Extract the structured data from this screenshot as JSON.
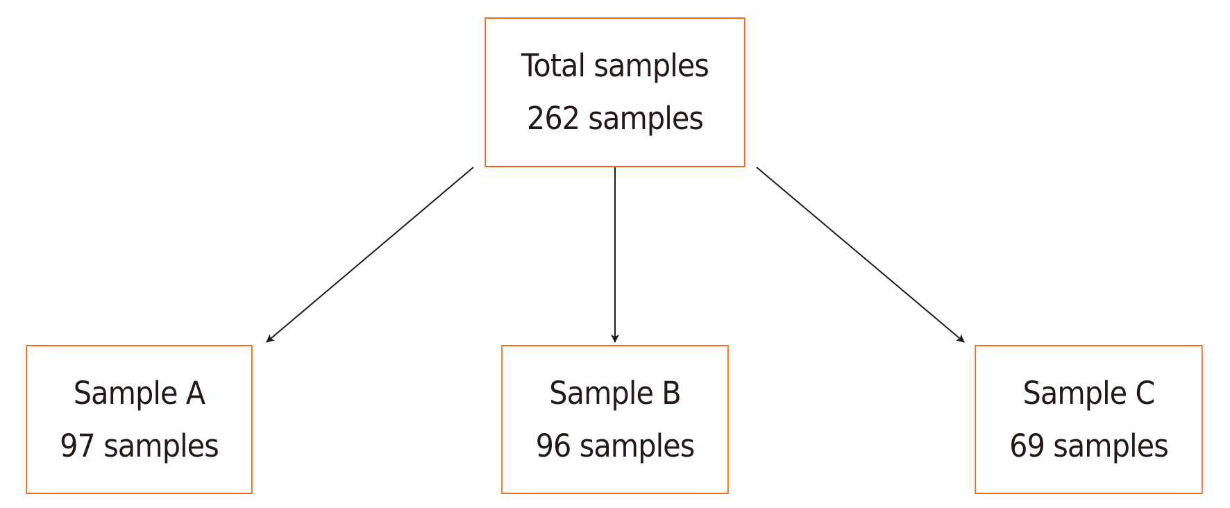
{
  "colors": {
    "box_border": "#f26b1d",
    "text": "#231815",
    "arrow": "#231815"
  },
  "nodes": {
    "total": {
      "title": "Total samples",
      "count": "262 samples"
    },
    "a": {
      "title": "Sample A",
      "count": "97 samples"
    },
    "b": {
      "title": "Sample B",
      "count": "96 samples"
    },
    "c": {
      "title": "Sample C",
      "count": "69 samples"
    }
  },
  "edges": [
    [
      "total",
      "a"
    ],
    [
      "total",
      "b"
    ],
    [
      "total",
      "c"
    ]
  ]
}
